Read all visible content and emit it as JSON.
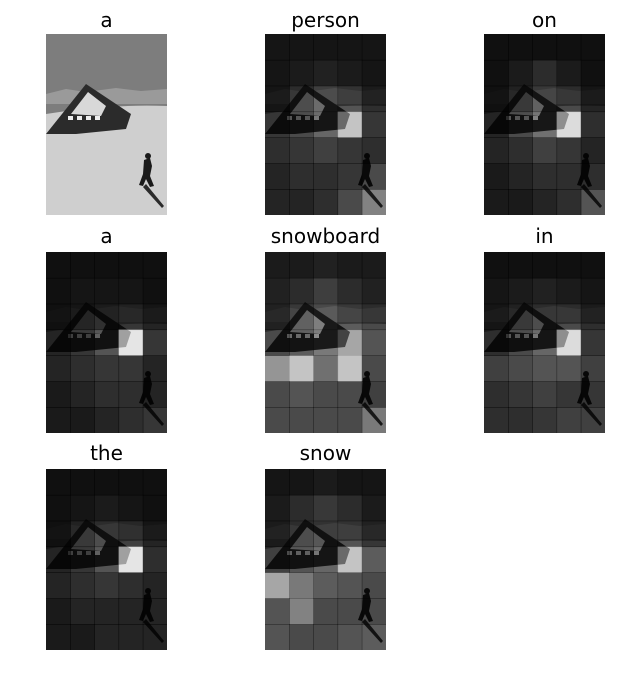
{
  "panels": [
    {
      "word": "a",
      "heat": "none"
    },
    {
      "word": "person"
    },
    {
      "word": "on"
    },
    {
      "word": "a"
    },
    {
      "word": "snowboard"
    },
    {
      "word": "in"
    },
    {
      "word": "the"
    },
    {
      "word": "snow"
    }
  ],
  "colors": {
    "background": "#ffffff",
    "title_text": "#000000"
  }
}
